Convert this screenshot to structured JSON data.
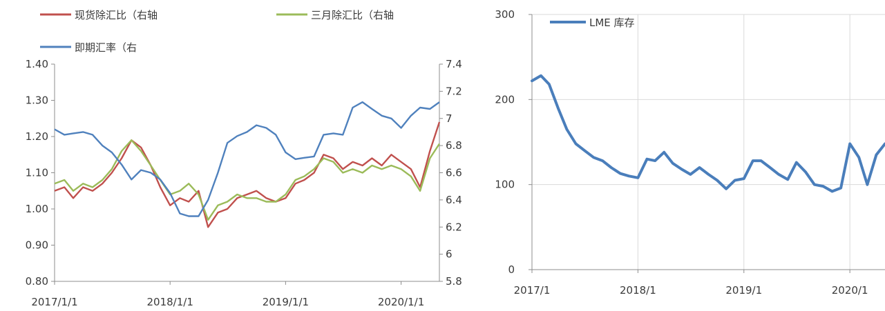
{
  "chart_data": [
    {
      "type": "line",
      "x_ticks": [
        "2017/1/1",
        "2018/1/1",
        "2019/1/1",
        "2020/1/1"
      ],
      "x_range": [
        "2017-01-01",
        "2020-05-01"
      ],
      "y_left": {
        "ylim": [
          0.8,
          1.4
        ],
        "ticks": [
          "0.80",
          "0.90",
          "1.00",
          "1.10",
          "1.20",
          "1.30",
          "1.40"
        ]
      },
      "y_right": {
        "ylim": [
          5.8,
          7.4
        ],
        "ticks": [
          "5.8",
          "6",
          "6.2",
          "6.4",
          "6.6",
          "6.8",
          "7",
          "7.2",
          "7.4"
        ]
      },
      "legend": "top",
      "grid": false,
      "series": [
        {
          "name": "现货除汇比（右轴",
          "color": "#c0504d",
          "axis": "left",
          "dates": [
            "2017-01-01",
            "2017-02-01",
            "2017-03-01",
            "2017-04-01",
            "2017-05-01",
            "2017-06-01",
            "2017-07-01",
            "2017-08-01",
            "2017-09-01",
            "2017-10-01",
            "2017-11-01",
            "2017-12-01",
            "2018-01-01",
            "2018-02-01",
            "2018-03-01",
            "2018-04-01",
            "2018-05-01",
            "2018-06-01",
            "2018-07-01",
            "2018-08-01",
            "2018-09-01",
            "2018-10-01",
            "2018-11-01",
            "2018-12-01",
            "2019-01-01",
            "2019-02-01",
            "2019-03-01",
            "2019-04-01",
            "2019-05-01",
            "2019-06-01",
            "2019-07-01",
            "2019-08-01",
            "2019-09-01",
            "2019-10-01",
            "2019-11-01",
            "2019-12-01",
            "2020-01-01",
            "2020-02-01",
            "2020-03-01",
            "2020-04-01",
            "2020-05-01"
          ],
          "values": [
            1.05,
            1.06,
            1.03,
            1.06,
            1.05,
            1.07,
            1.1,
            1.14,
            1.19,
            1.17,
            1.12,
            1.06,
            1.01,
            1.03,
            1.02,
            1.05,
            0.95,
            0.99,
            1.0,
            1.03,
            1.04,
            1.05,
            1.03,
            1.02,
            1.03,
            1.07,
            1.08,
            1.1,
            1.15,
            1.14,
            1.11,
            1.13,
            1.12,
            1.14,
            1.12,
            1.15,
            1.13,
            1.11,
            1.06,
            1.16,
            1.24
          ]
        },
        {
          "name": "三月除汇比（右轴",
          "color": "#9bbb59",
          "axis": "left",
          "dates": [
            "2017-01-01",
            "2017-02-01",
            "2017-03-01",
            "2017-04-01",
            "2017-05-01",
            "2017-06-01",
            "2017-07-01",
            "2017-08-01",
            "2017-09-01",
            "2017-10-01",
            "2017-11-01",
            "2017-12-01",
            "2018-01-01",
            "2018-02-01",
            "2018-03-01",
            "2018-04-01",
            "2018-05-01",
            "2018-06-01",
            "2018-07-01",
            "2018-08-01",
            "2018-09-01",
            "2018-10-01",
            "2018-11-01",
            "2018-12-01",
            "2019-01-01",
            "2019-02-01",
            "2019-03-01",
            "2019-04-01",
            "2019-05-01",
            "2019-06-01",
            "2019-07-01",
            "2019-08-01",
            "2019-09-01",
            "2019-10-01",
            "2019-11-01",
            "2019-12-01",
            "2020-01-01",
            "2020-02-01",
            "2020-03-01",
            "2020-04-01",
            "2020-05-01"
          ],
          "values": [
            1.07,
            1.08,
            1.05,
            1.07,
            1.06,
            1.08,
            1.11,
            1.16,
            1.19,
            1.16,
            1.12,
            1.08,
            1.04,
            1.05,
            1.07,
            1.04,
            0.97,
            1.01,
            1.02,
            1.04,
            1.03,
            1.03,
            1.02,
            1.02,
            1.04,
            1.08,
            1.09,
            1.11,
            1.14,
            1.13,
            1.1,
            1.11,
            1.1,
            1.12,
            1.11,
            1.12,
            1.11,
            1.09,
            1.05,
            1.14,
            1.18
          ]
        },
        {
          "name": "即期汇率（右",
          "color": "#4f81bd",
          "axis": "right",
          "dates": [
            "2017-01-01",
            "2017-02-01",
            "2017-03-01",
            "2017-04-01",
            "2017-05-01",
            "2017-06-01",
            "2017-07-01",
            "2017-08-01",
            "2017-09-01",
            "2017-10-01",
            "2017-11-01",
            "2017-12-01",
            "2018-01-01",
            "2018-02-01",
            "2018-03-01",
            "2018-04-01",
            "2018-05-01",
            "2018-06-01",
            "2018-07-01",
            "2018-08-01",
            "2018-09-01",
            "2018-10-01",
            "2018-11-01",
            "2018-12-01",
            "2019-01-01",
            "2019-02-01",
            "2019-03-01",
            "2019-04-01",
            "2019-05-01",
            "2019-06-01",
            "2019-07-01",
            "2019-08-01",
            "2019-09-01",
            "2019-10-01",
            "2019-11-01",
            "2019-12-01",
            "2020-01-01",
            "2020-02-01",
            "2020-03-01",
            "2020-04-01",
            "2020-05-01"
          ],
          "values": [
            6.92,
            6.88,
            6.89,
            6.9,
            6.88,
            6.8,
            6.75,
            6.66,
            6.55,
            6.62,
            6.6,
            6.55,
            6.45,
            6.3,
            6.28,
            6.28,
            6.4,
            6.6,
            6.82,
            6.87,
            6.9,
            6.95,
            6.93,
            6.88,
            6.75,
            6.7,
            6.71,
            6.72,
            6.88,
            6.89,
            6.88,
            7.08,
            7.12,
            7.07,
            7.02,
            7.0,
            6.93,
            7.02,
            7.08,
            7.07,
            7.12
          ]
        }
      ]
    },
    {
      "type": "line",
      "x_ticks": [
        "2017/1",
        "2018/1",
        "2019/1",
        "2020/1"
      ],
      "x_range": [
        "2017-01-01",
        "2020-05-01"
      ],
      "ylim": [
        0,
        300
      ],
      "y_ticks": [
        "0",
        "100",
        "200",
        "300"
      ],
      "legend": "top-left",
      "grid": true,
      "series": [
        {
          "name": "LME 库存",
          "color": "#4a7ebb",
          "dates": [
            "2017-01-01",
            "2017-02-01",
            "2017-03-01",
            "2017-04-01",
            "2017-05-01",
            "2017-06-01",
            "2017-07-01",
            "2017-08-01",
            "2017-09-01",
            "2017-10-01",
            "2017-11-01",
            "2017-12-01",
            "2018-01-01",
            "2018-02-01",
            "2018-03-01",
            "2018-04-01",
            "2018-05-01",
            "2018-06-01",
            "2018-07-01",
            "2018-08-01",
            "2018-09-01",
            "2018-10-01",
            "2018-11-01",
            "2018-12-01",
            "2019-01-01",
            "2019-02-01",
            "2019-03-01",
            "2019-04-01",
            "2019-05-01",
            "2019-06-01",
            "2019-07-01",
            "2019-08-01",
            "2019-09-01",
            "2019-10-01",
            "2019-11-01",
            "2019-12-01",
            "2020-01-01",
            "2020-02-01",
            "2020-03-01",
            "2020-04-01",
            "2020-05-01"
          ],
          "values": [
            222,
            228,
            218,
            190,
            165,
            148,
            140,
            132,
            128,
            120,
            113,
            110,
            108,
            130,
            128,
            138,
            125,
            118,
            112,
            120,
            112,
            105,
            95,
            105,
            107,
            128,
            128,
            120,
            112,
            106,
            126,
            115,
            100,
            98,
            92,
            96,
            148,
            132,
            100,
            135,
            148
          ]
        }
      ]
    }
  ],
  "legend_labels": [
    "现货除汇比（右轴",
    "三月除汇比（右轴",
    "即期汇率（右"
  ],
  "right_legend_label": "LME 库存"
}
